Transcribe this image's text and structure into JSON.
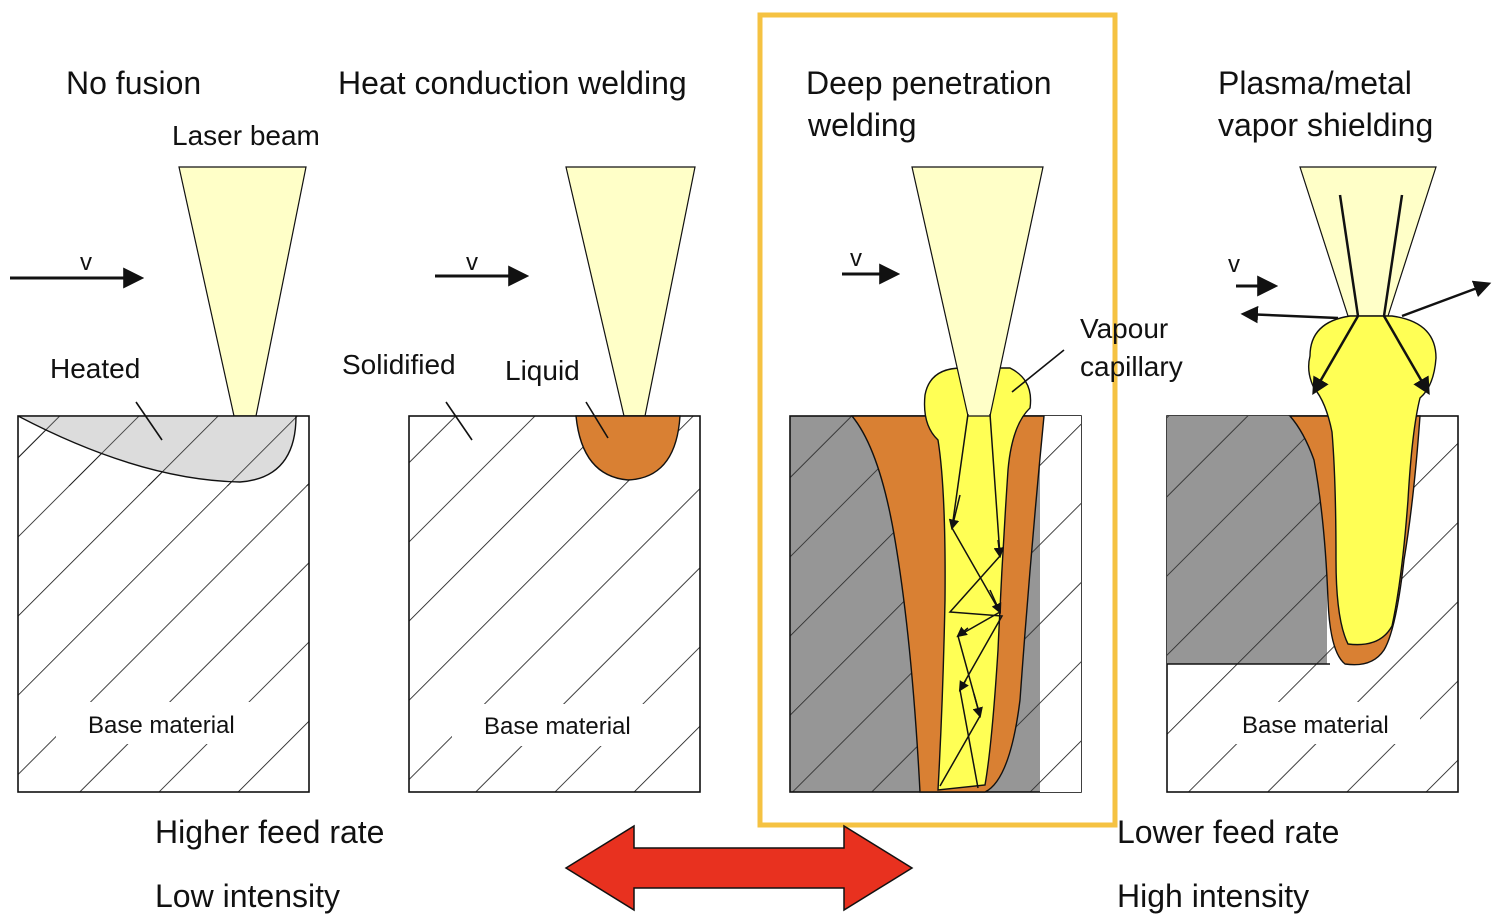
{
  "titles": {
    "no_fusion": "No fusion",
    "heat_conduction": "Heat conduction welding",
    "deep_penetration_1": "Deep penetration",
    "deep_penetration_2": "welding",
    "plasma_1": "Plasma/metal",
    "plasma_2": "vapor shielding"
  },
  "labels": {
    "laser_beam": "Laser beam",
    "v": "v",
    "heated": "Heated",
    "solidified": "Solidified",
    "liquid": "Liquid",
    "vapour_1": "Vapour",
    "vapour_2": "capillary",
    "base_material": "Base material"
  },
  "bottom": {
    "higher_feed": "Higher feed rate",
    "low_intensity": "Low intensity",
    "lower_feed": "Lower feed rate",
    "high_intensity": "High intensity"
  },
  "colors": {
    "beam": "#ffffc8",
    "heated": "#dcdcdc",
    "liquid": "#d98033",
    "vapor": "#ffff55",
    "solid_gray": "#969696",
    "highlight": "#f5c242",
    "arrow_red": "#e8311f"
  }
}
